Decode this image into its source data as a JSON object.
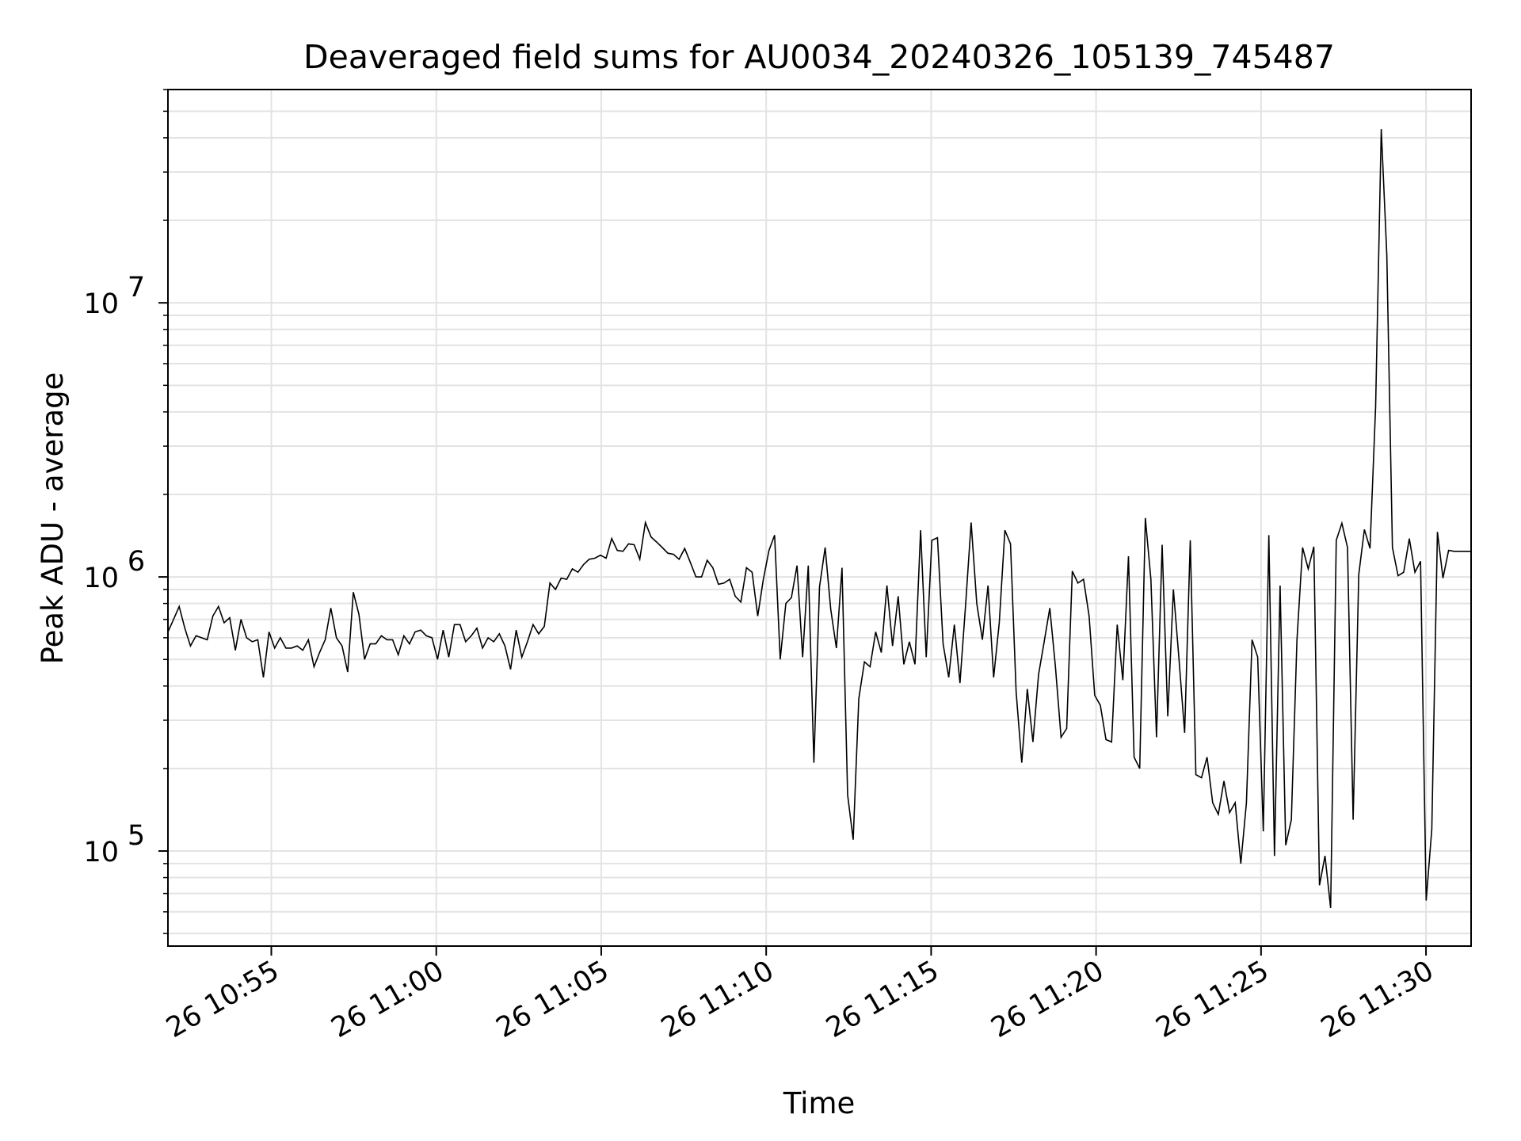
{
  "chart_data": {
    "type": "line",
    "title": "Deaveraged field sums for AU0034_20240326_105139_745487",
    "xlabel": "Time",
    "ylabel": "Peak ADU - average",
    "yscale": "log",
    "ylim": [
      45000,
      60000000
    ],
    "xlim": [
      "2024-03-26 10:51:52",
      "2024-03-26 11:31:22"
    ],
    "grid": true,
    "line_color": "#000000",
    "x_ticks": [
      {
        "value": "2024-03-26 10:55:00",
        "label": "26 10:55"
      },
      {
        "value": "2024-03-26 11:00:00",
        "label": "26 11:00"
      },
      {
        "value": "2024-03-26 11:05:00",
        "label": "26 11:05"
      },
      {
        "value": "2024-03-26 11:10:00",
        "label": "26 11:10"
      },
      {
        "value": "2024-03-26 11:15:00",
        "label": "26 11:15"
      },
      {
        "value": "2024-03-26 11:20:00",
        "label": "26 11:20"
      },
      {
        "value": "2024-03-26 11:25:00",
        "label": "26 11:25"
      },
      {
        "value": "2024-03-26 11:30:00",
        "label": "26 11:30"
      }
    ],
    "y_ticks": [
      {
        "value": 100000,
        "base": "10",
        "exp": "5"
      },
      {
        "value": 1000000,
        "base": "10",
        "exp": "6"
      },
      {
        "value": 10000000,
        "base": "10",
        "exp": "7"
      }
    ],
    "series": [
      {
        "x_start": "2024-03-26 10:51:52",
        "x_end": "2024-03-26 11:31:22",
        "values": [
          630000,
          700000,
          780000,
          650000,
          560000,
          610000,
          600000,
          590000,
          720000,
          780000,
          680000,
          710000,
          540000,
          700000,
          600000,
          580000,
          590000,
          430000,
          630000,
          550000,
          600000,
          550000,
          550000,
          560000,
          540000,
          590000,
          470000,
          530000,
          590000,
          770000,
          600000,
          560000,
          450000,
          880000,
          730000,
          500000,
          570000,
          570000,
          610000,
          590000,
          590000,
          520000,
          610000,
          570000,
          630000,
          640000,
          610000,
          600000,
          500000,
          640000,
          510000,
          670000,
          670000,
          580000,
          610000,
          650000,
          550000,
          600000,
          580000,
          620000,
          560000,
          460000,
          640000,
          510000,
          580000,
          670000,
          620000,
          660000,
          950000,
          900000,
          990000,
          980000,
          1070000,
          1040000,
          1110000,
          1160000,
          1170000,
          1200000,
          1170000,
          1380000,
          1250000,
          1240000,
          1320000,
          1310000,
          1160000,
          1580000,
          1400000,
          1340000,
          1280000,
          1220000,
          1210000,
          1160000,
          1270000,
          1130000,
          1000000,
          1000000,
          1150000,
          1080000,
          940000,
          950000,
          980000,
          850000,
          810000,
          1080000,
          1040000,
          720000,
          980000,
          1250000,
          1420000,
          500000,
          800000,
          840000,
          1100000,
          510000,
          1100000,
          210000,
          920000,
          1280000,
          760000,
          550000,
          1080000,
          160000,
          110000,
          360000,
          490000,
          470000,
          630000,
          530000,
          930000,
          560000,
          850000,
          480000,
          580000,
          480000,
          1480000,
          510000,
          1360000,
          1390000,
          570000,
          430000,
          670000,
          410000,
          790000,
          1580000,
          800000,
          590000,
          930000,
          430000,
          680000,
          1480000,
          1320000,
          380000,
          210000,
          390000,
          250000,
          440000,
          580000,
          770000,
          470000,
          260000,
          280000,
          1050000,
          950000,
          980000,
          720000,
          370000,
          340000,
          255000,
          250000,
          670000,
          420000,
          1190000,
          220000,
          200000,
          1640000,
          980000,
          260000,
          1310000,
          310000,
          900000,
          500000,
          270000,
          1360000,
          190000,
          185000,
          220000,
          150000,
          136000,
          180000,
          138000,
          150000,
          90000,
          150000,
          590000,
          510000,
          118000,
          1420000,
          96000,
          930000,
          105000,
          130000,
          590000,
          1280000,
          1070000,
          1290000,
          75000,
          96000,
          62000,
          1360000,
          1570000,
          1280000,
          130000,
          1020000,
          1490000,
          1270000,
          4200000,
          43000000,
          15000000,
          1280000,
          1010000,
          1040000,
          1380000,
          1040000,
          1140000,
          66000,
          120000,
          1460000,
          990000,
          1250000,
          1240000,
          1240000,
          1240000,
          1240000
        ]
      }
    ]
  }
}
